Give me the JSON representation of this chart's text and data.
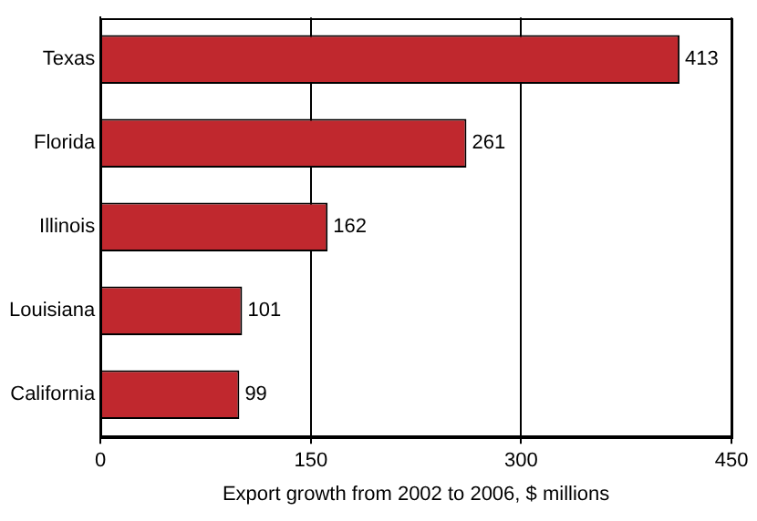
{
  "chart_data": {
    "type": "bar",
    "orientation": "horizontal",
    "categories": [
      "Texas",
      "Florida",
      "Illinois",
      "Louisiana",
      "California"
    ],
    "values": [
      413,
      261,
      162,
      101,
      99
    ],
    "color": "#c0282e",
    "xlim": [
      0,
      450
    ],
    "xticks": [
      0,
      150,
      300,
      450
    ],
    "grid": "x",
    "data_labels": true,
    "legend": false,
    "xlabel": "Export growth from 2002 to 2006, $ millions"
  }
}
